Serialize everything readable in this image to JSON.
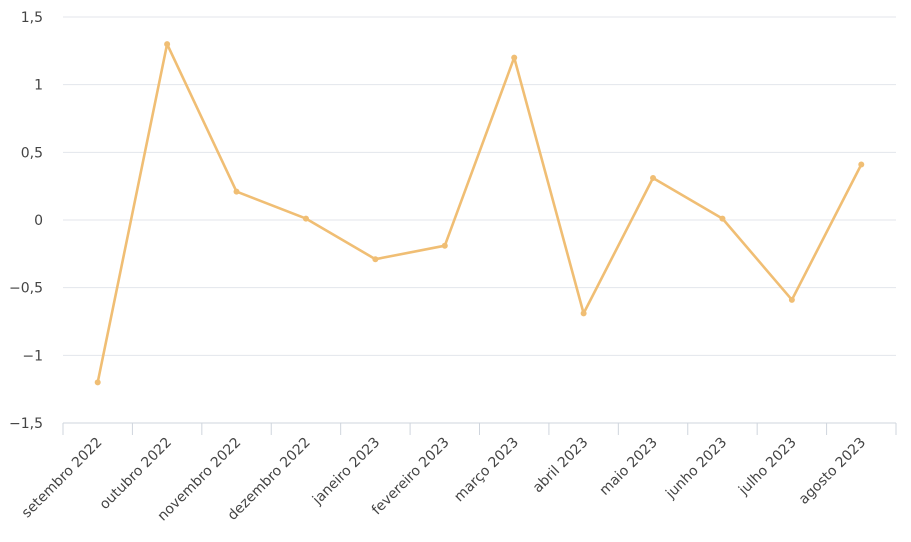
{
  "chart_data": {
    "type": "line",
    "title": "",
    "xlabel": "",
    "ylabel": "",
    "categories": [
      "setembro 2022",
      "outubro 2022",
      "novembro 2022",
      "dezembro 2022",
      "janeiro 2023",
      "fevereiro 2023",
      "março 2023",
      "abril 2023",
      "maio 2023",
      "junho 2023",
      "julho 2023",
      "agosto 2023"
    ],
    "series": [
      {
        "values": [
          -1.2,
          1.3,
          0.21,
          0.01,
          -0.29,
          -0.19,
          1.2,
          -0.69,
          0.31,
          0.01,
          -0.59,
          0.41
        ]
      }
    ],
    "ylim": [
      -1.5,
      1.5
    ],
    "yticks": [
      1.5,
      1,
      0.5,
      0,
      -0.5,
      -1,
      -1.5
    ],
    "ytick_labels": [
      "1,5",
      "1",
      "0,5",
      "0",
      "−0,5",
      "−1",
      "−1,5"
    ],
    "grid": true,
    "line_color": "#f0be74"
  }
}
